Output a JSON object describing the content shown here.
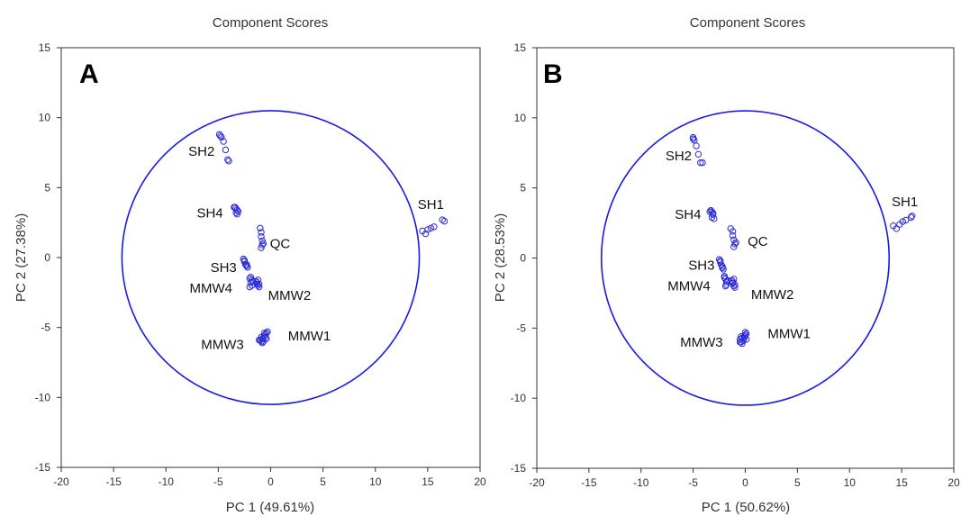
{
  "chart_data": [
    {
      "type": "scatter",
      "title": "Component Scores",
      "panel_letter": "A",
      "xlabel": "PC 1 (49.61%)",
      "ylabel": "PC 2 (27.38%)",
      "xlim": [
        -20,
        20
      ],
      "ylim": [
        -15,
        15
      ],
      "xticks": [
        -20,
        -15,
        -10,
        -5,
        0,
        5,
        10,
        15,
        20
      ],
      "yticks": [
        -15,
        -10,
        -5,
        0,
        5,
        10,
        15
      ],
      "grid": false,
      "marker_color": "#2b2bd6",
      "ellipse": {
        "cx": 0,
        "cy": 0,
        "rx": 14.2,
        "ry": 10.5,
        "color": "#1a1ae0"
      },
      "groups": [
        {
          "name": "SH1",
          "points": [
            [
              14.5,
              1.9
            ],
            [
              14.8,
              1.7
            ],
            [
              15.0,
              2.0
            ],
            [
              15.3,
              2.1
            ],
            [
              15.6,
              2.2
            ],
            [
              16.4,
              2.7
            ],
            [
              16.6,
              2.6
            ]
          ]
        },
        {
          "name": "SH2",
          "points": [
            [
              -4.9,
              8.8
            ],
            [
              -4.7,
              8.6
            ],
            [
              -4.5,
              8.3
            ],
            [
              -4.3,
              7.7
            ],
            [
              -4.1,
              7.0
            ],
            [
              -4.0,
              6.9
            ],
            [
              -4.8,
              8.7
            ]
          ]
        },
        {
          "name": "SH4",
          "points": [
            [
              -3.5,
              3.6
            ],
            [
              -3.3,
              3.5
            ],
            [
              -3.2,
              3.4
            ],
            [
              -3.3,
              3.2
            ],
            [
              -3.2,
              3.1
            ],
            [
              -3.4,
              3.6
            ],
            [
              -3.1,
              3.3
            ]
          ]
        },
        {
          "name": "QC",
          "points": [
            [
              -1.0,
              2.1
            ],
            [
              -0.9,
              1.8
            ],
            [
              -0.9,
              1.5
            ],
            [
              -0.8,
              1.2
            ],
            [
              -0.8,
              0.9
            ],
            [
              -0.9,
              0.7
            ],
            [
              -0.7,
              1.0
            ]
          ]
        },
        {
          "name": "SH3",
          "points": [
            [
              -2.6,
              -0.1
            ],
            [
              -2.5,
              -0.3
            ],
            [
              -2.4,
              -0.5
            ],
            [
              -2.3,
              -0.6
            ],
            [
              -2.2,
              -0.7
            ],
            [
              -2.5,
              -0.2
            ],
            [
              -2.3,
              -0.5
            ]
          ]
        },
        {
          "name": "MMW4",
          "points": [
            [
              -2.0,
              -1.5
            ],
            [
              -1.8,
              -1.6
            ],
            [
              -1.9,
              -1.8
            ],
            [
              -2.0,
              -2.1
            ],
            [
              -1.7,
              -1.7
            ],
            [
              -1.9,
              -1.4
            ],
            [
              -1.8,
              -2.0
            ]
          ]
        },
        {
          "name": "MMW2",
          "points": [
            [
              -1.4,
              -1.7
            ],
            [
              -1.3,
              -1.9
            ],
            [
              -1.2,
              -2.0
            ],
            [
              -1.1,
              -2.1
            ],
            [
              -1.3,
              -1.8
            ],
            [
              -1.2,
              -1.6
            ],
            [
              -1.1,
              -1.9
            ]
          ]
        },
        {
          "name": "MMW3",
          "points": [
            [
              -1.0,
              -5.9
            ],
            [
              -0.9,
              -6.0
            ],
            [
              -0.8,
              -5.8
            ],
            [
              -0.7,
              -6.0
            ],
            [
              -0.9,
              -5.7
            ],
            [
              -1.1,
              -5.9
            ],
            [
              -0.8,
              -6.1
            ]
          ]
        },
        {
          "name": "MMW1",
          "points": [
            [
              -0.6,
              -5.6
            ],
            [
              -0.5,
              -5.5
            ],
            [
              -0.4,
              -5.4
            ],
            [
              -0.3,
              -5.3
            ],
            [
              -0.5,
              -5.7
            ],
            [
              -0.4,
              -5.8
            ],
            [
              -0.6,
              -5.4
            ]
          ]
        }
      ],
      "labels": [
        {
          "text": "SH1",
          "x": 15.3,
          "y": 3.8
        },
        {
          "text": "SH2",
          "x": -6.6,
          "y": 7.6
        },
        {
          "text": "SH4",
          "x": -5.8,
          "y": 3.2
        },
        {
          "text": "QC",
          "x": 0.9,
          "y": 1.0
        },
        {
          "text": "SH3",
          "x": -4.5,
          "y": -0.7
        },
        {
          "text": "MMW4",
          "x": -5.7,
          "y": -2.2
        },
        {
          "text": "MMW2",
          "x": 1.8,
          "y": -2.7
        },
        {
          "text": "MMW3",
          "x": -4.6,
          "y": -6.2
        },
        {
          "text": "MMW1",
          "x": 3.7,
          "y": -5.6
        }
      ]
    },
    {
      "type": "scatter",
      "title": "Component Scores",
      "panel_letter": "B",
      "xlabel": "PC 1 (50.62%)",
      "ylabel": "PC 2 (28.53%)",
      "xlim": [
        -20,
        20
      ],
      "ylim": [
        -15,
        15
      ],
      "xticks": [
        -20,
        -15,
        -10,
        -5,
        0,
        5,
        10,
        15,
        20
      ],
      "yticks": [
        -15,
        -10,
        -5,
        0,
        5,
        10,
        15
      ],
      "grid": false,
      "marker_color": "#2b2bd6",
      "ellipse": {
        "cx": 0,
        "cy": 0,
        "rx": 13.8,
        "ry": 10.5,
        "color": "#1a1ae0"
      },
      "groups": [
        {
          "name": "SH1",
          "points": [
            [
              14.2,
              2.3
            ],
            [
              14.5,
              2.1
            ],
            [
              14.8,
              2.4
            ],
            [
              15.1,
              2.6
            ],
            [
              15.4,
              2.7
            ],
            [
              15.9,
              2.9
            ],
            [
              16.0,
              3.0
            ]
          ]
        },
        {
          "name": "SH2",
          "points": [
            [
              -5.0,
              8.6
            ],
            [
              -4.9,
              8.4
            ],
            [
              -4.7,
              8.0
            ],
            [
              -4.5,
              7.4
            ],
            [
              -4.3,
              6.8
            ],
            [
              -4.1,
              6.8
            ],
            [
              -5.0,
              8.5
            ]
          ]
        },
        {
          "name": "SH4",
          "points": [
            [
              -3.3,
              3.4
            ],
            [
              -3.2,
              3.3
            ],
            [
              -3.1,
              3.1
            ],
            [
              -3.2,
              2.9
            ],
            [
              -3.0,
              2.8
            ],
            [
              -3.4,
              3.3
            ],
            [
              -3.1,
              3.2
            ]
          ]
        },
        {
          "name": "QC",
          "points": [
            [
              -1.4,
              2.1
            ],
            [
              -1.2,
              1.9
            ],
            [
              -1.2,
              1.6
            ],
            [
              -1.1,
              1.3
            ],
            [
              -1.0,
              1.0
            ],
            [
              -1.1,
              0.8
            ],
            [
              -0.9,
              1.1
            ]
          ]
        },
        {
          "name": "SH3",
          "points": [
            [
              -2.5,
              -0.1
            ],
            [
              -2.4,
              -0.3
            ],
            [
              -2.3,
              -0.5
            ],
            [
              -2.2,
              -0.7
            ],
            [
              -2.1,
              -0.8
            ],
            [
              -2.4,
              -0.2
            ],
            [
              -2.2,
              -0.6
            ]
          ]
        },
        {
          "name": "MMW4",
          "points": [
            [
              -2.0,
              -1.3
            ],
            [
              -1.9,
              -1.5
            ],
            [
              -1.8,
              -1.7
            ],
            [
              -1.9,
              -2.0
            ],
            [
              -1.7,
              -1.6
            ],
            [
              -2.0,
              -1.4
            ],
            [
              -1.8,
              -1.9
            ]
          ]
        },
        {
          "name": "MMW2",
          "points": [
            [
              -1.3,
              -1.6
            ],
            [
              -1.2,
              -1.8
            ],
            [
              -1.1,
              -2.0
            ],
            [
              -1.0,
              -2.1
            ],
            [
              -1.2,
              -1.7
            ],
            [
              -1.1,
              -1.5
            ],
            [
              -1.0,
              -1.9
            ]
          ]
        },
        {
          "name": "MMW3",
          "points": [
            [
              -0.5,
              -5.8
            ],
            [
              -0.4,
              -6.0
            ],
            [
              -0.3,
              -5.7
            ],
            [
              -0.2,
              -5.9
            ],
            [
              -0.4,
              -5.6
            ],
            [
              -0.5,
              -6.0
            ],
            [
              -0.3,
              -6.1
            ]
          ]
        },
        {
          "name": "MMW1",
          "points": [
            [
              -0.1,
              -5.6
            ],
            [
              0.0,
              -5.5
            ],
            [
              0.1,
              -5.4
            ],
            [
              0.0,
              -5.3
            ],
            [
              -0.1,
              -5.7
            ],
            [
              0.1,
              -5.8
            ],
            [
              0.0,
              -5.5
            ]
          ]
        }
      ],
      "labels": [
        {
          "text": "SH1",
          "x": 15.3,
          "y": 4.0
        },
        {
          "text": "SH2",
          "x": -6.4,
          "y": 7.3
        },
        {
          "text": "SH4",
          "x": -5.5,
          "y": 3.1
        },
        {
          "text": "QC",
          "x": 1.2,
          "y": 1.2
        },
        {
          "text": "SH3",
          "x": -4.2,
          "y": -0.5
        },
        {
          "text": "MMW4",
          "x": -5.4,
          "y": -2.0
        },
        {
          "text": "MMW2",
          "x": 2.6,
          "y": -2.6
        },
        {
          "text": "MMW3",
          "x": -4.2,
          "y": -6.0
        },
        {
          "text": "MMW1",
          "x": 4.2,
          "y": -5.4
        }
      ]
    }
  ]
}
